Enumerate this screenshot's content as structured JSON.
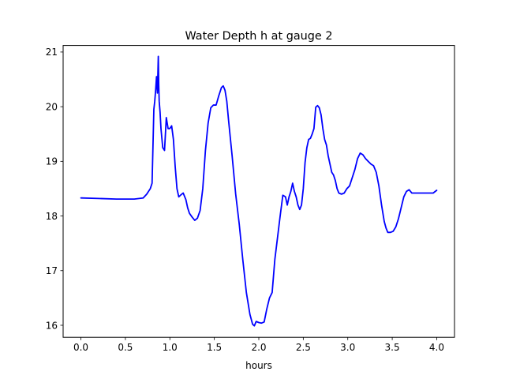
{
  "chart_data": {
    "type": "line",
    "title": "Water Depth h at gauge 2",
    "xlabel": "hours",
    "ylabel": "",
    "xlim": [
      -0.2,
      4.2
    ],
    "ylim": [
      15.78,
      21.12
    ],
    "xticks": [
      0.0,
      0.5,
      1.0,
      1.5,
      2.0,
      2.5,
      3.0,
      3.5,
      4.0
    ],
    "xtick_labels": [
      "0.0",
      "0.5",
      "1.0",
      "1.5",
      "2.0",
      "2.5",
      "3.0",
      "3.5",
      "4.0"
    ],
    "yticks": [
      16,
      17,
      18,
      19,
      20,
      21
    ],
    "ytick_labels": [
      "16",
      "17",
      "18",
      "19",
      "20",
      "21"
    ],
    "grid": false,
    "series": [
      {
        "color": "#0000ff",
        "x": [
          0.0,
          0.2,
          0.4,
          0.6,
          0.7,
          0.74,
          0.78,
          0.8,
          0.82,
          0.83,
          0.84,
          0.85,
          0.86,
          0.87,
          0.875,
          0.88,
          0.89,
          0.9,
          0.92,
          0.94,
          0.96,
          0.98,
          1.0,
          1.02,
          1.04,
          1.06,
          1.08,
          1.1,
          1.12,
          1.15,
          1.18,
          1.2,
          1.22,
          1.25,
          1.28,
          1.31,
          1.34,
          1.37,
          1.4,
          1.43,
          1.46,
          1.49,
          1.52,
          1.55,
          1.58,
          1.6,
          1.62,
          1.64,
          1.66,
          1.7,
          1.74,
          1.78,
          1.82,
          1.86,
          1.9,
          1.93,
          1.95,
          1.97,
          2.0,
          2.03,
          2.06,
          2.09,
          2.12,
          2.15,
          2.18,
          2.21,
          2.24,
          2.27,
          2.3,
          2.32,
          2.34,
          2.36,
          2.38,
          2.4,
          2.42,
          2.44,
          2.46,
          2.48,
          2.5,
          2.52,
          2.54,
          2.56,
          2.58,
          2.6,
          2.62,
          2.64,
          2.66,
          2.68,
          2.7,
          2.72,
          2.74,
          2.76,
          2.78,
          2.8,
          2.82,
          2.84,
          2.86,
          2.88,
          2.9,
          2.93,
          2.96,
          2.99,
          3.02,
          3.05,
          3.08,
          3.11,
          3.14,
          3.17,
          3.2,
          3.23,
          3.26,
          3.29,
          3.32,
          3.35,
          3.38,
          3.41,
          3.43,
          3.45,
          3.48,
          3.51,
          3.54,
          3.57,
          3.6,
          3.63,
          3.66,
          3.69,
          3.72,
          3.75,
          3.78,
          3.81,
          3.84,
          3.87,
          3.9,
          3.93,
          3.96,
          4.0
        ],
        "y": [
          18.33,
          18.32,
          18.31,
          18.31,
          18.33,
          18.4,
          18.5,
          18.6,
          19.95,
          20.1,
          20.3,
          20.55,
          20.25,
          20.92,
          20.4,
          20.1,
          19.9,
          19.6,
          19.25,
          19.2,
          19.8,
          19.6,
          19.6,
          19.65,
          19.4,
          18.9,
          18.5,
          18.35,
          18.38,
          18.42,
          18.3,
          18.15,
          18.05,
          17.98,
          17.92,
          17.96,
          18.1,
          18.5,
          19.2,
          19.7,
          19.98,
          20.03,
          20.03,
          20.2,
          20.35,
          20.38,
          20.3,
          20.1,
          19.75,
          19.1,
          18.4,
          17.85,
          17.2,
          16.6,
          16.2,
          16.02,
          15.99,
          16.07,
          16.05,
          16.04,
          16.06,
          16.3,
          16.5,
          16.6,
          17.2,
          17.6,
          18.0,
          18.38,
          18.35,
          18.2,
          18.35,
          18.45,
          18.6,
          18.45,
          18.35,
          18.2,
          18.12,
          18.2,
          18.5,
          18.98,
          19.25,
          19.4,
          19.42,
          19.5,
          19.6,
          19.99,
          20.02,
          19.98,
          19.85,
          19.6,
          19.4,
          19.3,
          19.1,
          18.95,
          18.8,
          18.75,
          18.65,
          18.5,
          18.42,
          18.4,
          18.42,
          18.5,
          18.55,
          18.7,
          18.85,
          19.05,
          19.15,
          19.12,
          19.05,
          19.0,
          18.95,
          18.92,
          18.8,
          18.55,
          18.2,
          17.9,
          17.78,
          17.7,
          17.7,
          17.72,
          17.8,
          17.95,
          18.15,
          18.35,
          18.45,
          18.48,
          18.42,
          18.42,
          18.42,
          18.42,
          18.42,
          18.42,
          18.42,
          18.42,
          18.42,
          18.47
        ]
      }
    ]
  }
}
